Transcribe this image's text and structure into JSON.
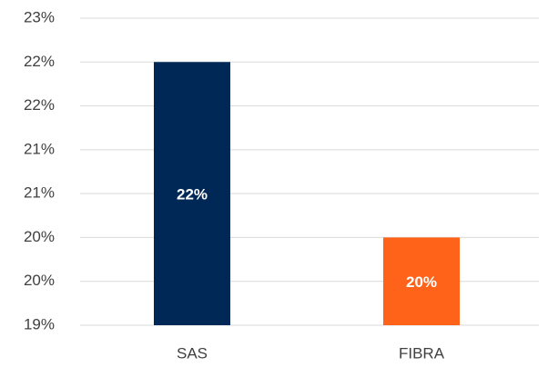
{
  "chart_data": {
    "type": "bar",
    "categories": [
      "SAS",
      "FIBRA"
    ],
    "values": [
      22,
      20
    ],
    "value_labels": [
      "22%",
      "20%"
    ],
    "colors": [
      "#002856",
      "#ff6319"
    ],
    "ylim": [
      19,
      22.5
    ],
    "yticks": [
      {
        "value": 19,
        "label": "19%"
      },
      {
        "value": 19.5,
        "label": "20%"
      },
      {
        "value": 20,
        "label": "20%"
      },
      {
        "value": 20.5,
        "label": "21%"
      },
      {
        "value": 21,
        "label": "21%"
      },
      {
        "value": 21.5,
        "label": "22%"
      },
      {
        "value": 22,
        "label": "22%"
      },
      {
        "value": 22.5,
        "label": "23%"
      }
    ],
    "grid": true
  }
}
